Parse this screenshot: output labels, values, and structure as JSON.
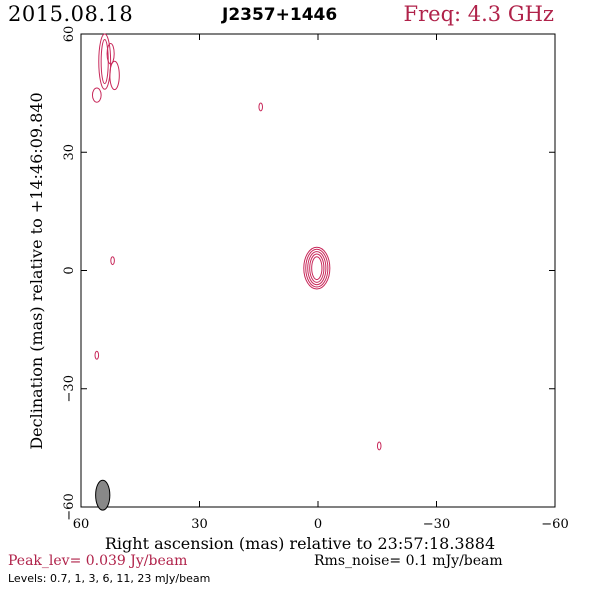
{
  "header": {
    "date": "2015.08.18",
    "source": "J2357+1446",
    "frequency": "Freq: 4.3 GHz"
  },
  "axes": {
    "xlabel": "Right ascension (mas) relative to 23:57:18.3884",
    "ylabel": "Declination (mas) relative to +14:46:09.840",
    "xlim": [
      60,
      -60
    ],
    "ylim": [
      -60,
      60
    ],
    "xticks": [
      60,
      30,
      0,
      -30,
      -60
    ],
    "yticks": [
      -60,
      -30,
      0,
      30,
      60
    ],
    "xtick_labels": [
      "60",
      "30",
      "0",
      "−30",
      "−60"
    ],
    "ytick_labels": [
      "−60",
      "−30",
      "0",
      "30",
      "60"
    ]
  },
  "footer": {
    "peak": "Peak_lev=  0.039 Jy/beam",
    "rms": "Rms_noise=   0.1 mJy/beam",
    "levels": "Levels: 0.7,    1,    3,    6,   11,   23 mJy/beam"
  },
  "colors": {
    "contour": "#c8285a",
    "peak_text": "#b0224a",
    "beam_fill": "#888888"
  },
  "chart_data": {
    "type": "contour",
    "contour_levels_mJy": [
      0.7,
      1,
      3,
      6,
      11,
      23
    ],
    "components": [
      {
        "name": "core",
        "ra": 0.3,
        "dec": 0.6,
        "rings": [
          [
            1.3,
            2.9
          ],
          [
            1.8,
            3.6
          ],
          [
            2.3,
            4.2
          ],
          [
            2.8,
            4.8
          ],
          [
            3.3,
            5.3
          ]
        ]
      },
      {
        "name": "blob-nw-a",
        "ra": 54,
        "dec": 53,
        "rings": [
          [
            1.5,
            7.0
          ],
          [
            0.9,
            5.6
          ]
        ]
      },
      {
        "name": "blob-nw-b",
        "ra": 51.5,
        "dec": 49.5,
        "rings": [
          [
            1.2,
            3.6
          ]
        ]
      },
      {
        "name": "blob-nw-c",
        "ra": 56,
        "dec": 44.5,
        "rings": [
          [
            1.1,
            1.8
          ]
        ]
      },
      {
        "name": "blob-nw-d",
        "ra": 52.5,
        "dec": 55,
        "rings": [
          [
            0.9,
            2.6
          ]
        ]
      },
      {
        "name": "spot-1",
        "ra": 14.5,
        "dec": 41.5,
        "rings": [
          [
            0.45,
            1.0
          ]
        ]
      },
      {
        "name": "spot-2",
        "ra": 52,
        "dec": 2.5,
        "rings": [
          [
            0.45,
            1.0
          ]
        ]
      },
      {
        "name": "spot-3",
        "ra": 56,
        "dec": -21.5,
        "rings": [
          [
            0.45,
            1.0
          ]
        ]
      },
      {
        "name": "spot-4",
        "ra": -15.5,
        "dec": -44.5,
        "rings": [
          [
            0.45,
            1.0
          ]
        ]
      }
    ],
    "beam": {
      "ra": 54.5,
      "dec": -57,
      "major": 3.8,
      "minor": 1.8
    }
  }
}
